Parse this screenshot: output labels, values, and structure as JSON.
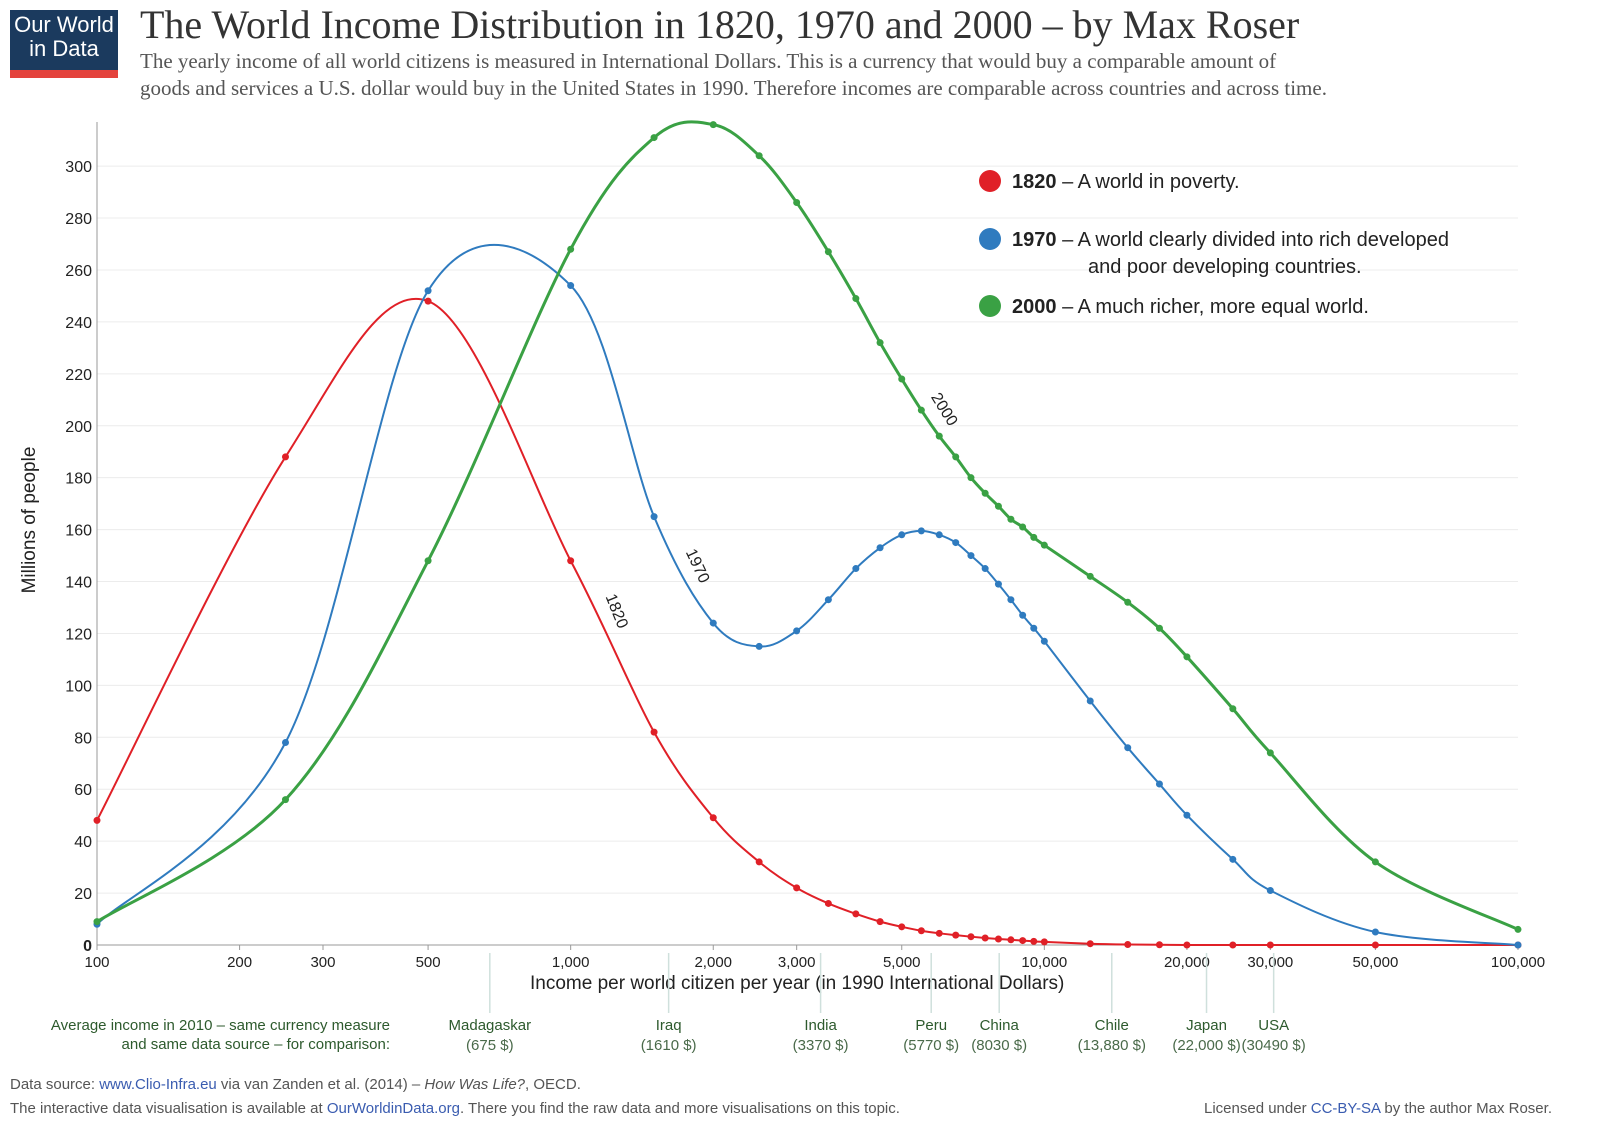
{
  "logo": {
    "line1": "Our World",
    "line2": "in Data"
  },
  "chart_data": {
    "type": "line",
    "title": "The World Income Distribution in 1820, 1970 and 2000 – by Max Roser",
    "subtitle": [
      "The yearly income of all world citizens is measured in International Dollars. This is a currency that would buy a comparable amount of",
      "goods and services a U.S. dollar would buy in the United States in 1990. Therefore incomes are comparable across countries and across time."
    ],
    "x_label": "Income per world citizen per year (in 1990 International Dollars)",
    "y_label": "Millions of people",
    "log_x": true,
    "grid": true,
    "xlim": [
      100,
      100000
    ],
    "ylim": [
      0,
      317
    ],
    "xticks": [
      100,
      200,
      300,
      500,
      {
        "value": 1000,
        "label": "1,000"
      },
      {
        "value": 2000,
        "label": "2,000"
      },
      {
        "value": 3000,
        "label": "3,000"
      },
      {
        "value": 5000,
        "label": "5,000"
      },
      {
        "value": 10000,
        "label": "10,000"
      },
      {
        "value": 20000,
        "label": "20,000"
      },
      {
        "value": 30000,
        "label": "30,000"
      },
      {
        "value": 50000,
        "label": "50,000"
      },
      {
        "value": 100000,
        "label": "100,000"
      }
    ],
    "yticks": [
      0,
      20,
      40,
      60,
      80,
      100,
      120,
      140,
      160,
      180,
      200,
      220,
      240,
      260,
      280,
      300
    ],
    "x": [
      100,
      250,
      500,
      1000,
      1500,
      2000,
      2500,
      3000,
      3500,
      4000,
      4500,
      5000,
      5500,
      6000,
      6500,
      7000,
      7500,
      8000,
      8500,
      9000,
      9500,
      10000,
      12500,
      15000,
      17500,
      20000,
      25000,
      30000,
      50000,
      100000
    ],
    "series": [
      {
        "name": "1820",
        "description": [
          "– A world in poverty."
        ],
        "color": "#e02027",
        "values": [
          48,
          188,
          248,
          148,
          82,
          49,
          32,
          22,
          16,
          12,
          9,
          7,
          5.5,
          4.5,
          3.8,
          3.2,
          2.7,
          2.3,
          2,
          1.7,
          1.4,
          1.2,
          0.5,
          0.2,
          0.1,
          0,
          0,
          0,
          0,
          0
        ]
      },
      {
        "name": "1970",
        "description": [
          "– A world clearly divided into rich developed",
          "and poor developing countries."
        ],
        "color": "#2f7bbf",
        "values": [
          8,
          78,
          252,
          254,
          165,
          124,
          115,
          121,
          133,
          145,
          153,
          158,
          159.5,
          158,
          155,
          150,
          145,
          139,
          133,
          127,
          122,
          117,
          94,
          76,
          62,
          50,
          33,
          21,
          5,
          0
        ]
      },
      {
        "name": "2000",
        "description": [
          "– A much richer, more equal world."
        ],
        "color": "#3aa144",
        "values": [
          9,
          56,
          148,
          268,
          311,
          316,
          304,
          286,
          267,
          249,
          232,
          218,
          206,
          196,
          188,
          180,
          174,
          169,
          164,
          161,
          157,
          154,
          142,
          132,
          122,
          111,
          91,
          74,
          32,
          6
        ]
      }
    ],
    "comparison": {
      "intro": [
        "Average income in 2010 – same currency measure",
        "and same data source – for comparison:"
      ],
      "countries": [
        {
          "name": "Madagaskar",
          "value": 675,
          "label": "(675 $)"
        },
        {
          "name": "Iraq",
          "value": 1610,
          "label": "(1610 $)"
        },
        {
          "name": "India",
          "value": 3370,
          "label": "(3370 $)"
        },
        {
          "name": "Peru",
          "value": 5770,
          "label": "(5770 $)"
        },
        {
          "name": "China",
          "value": 8030,
          "label": "(8030 $)"
        },
        {
          "name": "Chile",
          "value": 13880,
          "label": "(13,880 $)"
        },
        {
          "name": "Japan",
          "value": 22000,
          "label": "(22,000 $)"
        },
        {
          "name": "USA",
          "value": 30490,
          "label": "(30490 $)"
        }
      ]
    }
  },
  "footer": {
    "source": [
      "Data source: ",
      "www.Clio-Infra.eu",
      " via van Zanden et al. (2014) – ",
      "How Was Life?",
      ", OECD."
    ],
    "note": [
      "The interactive data visualisation is available at ",
      "OurWorldinData.org",
      ". There you find the raw data and more visualisations on this topic."
    ],
    "license": [
      "Licensed under ",
      "CC-BY-SA",
      " by the author Max Roser."
    ]
  }
}
